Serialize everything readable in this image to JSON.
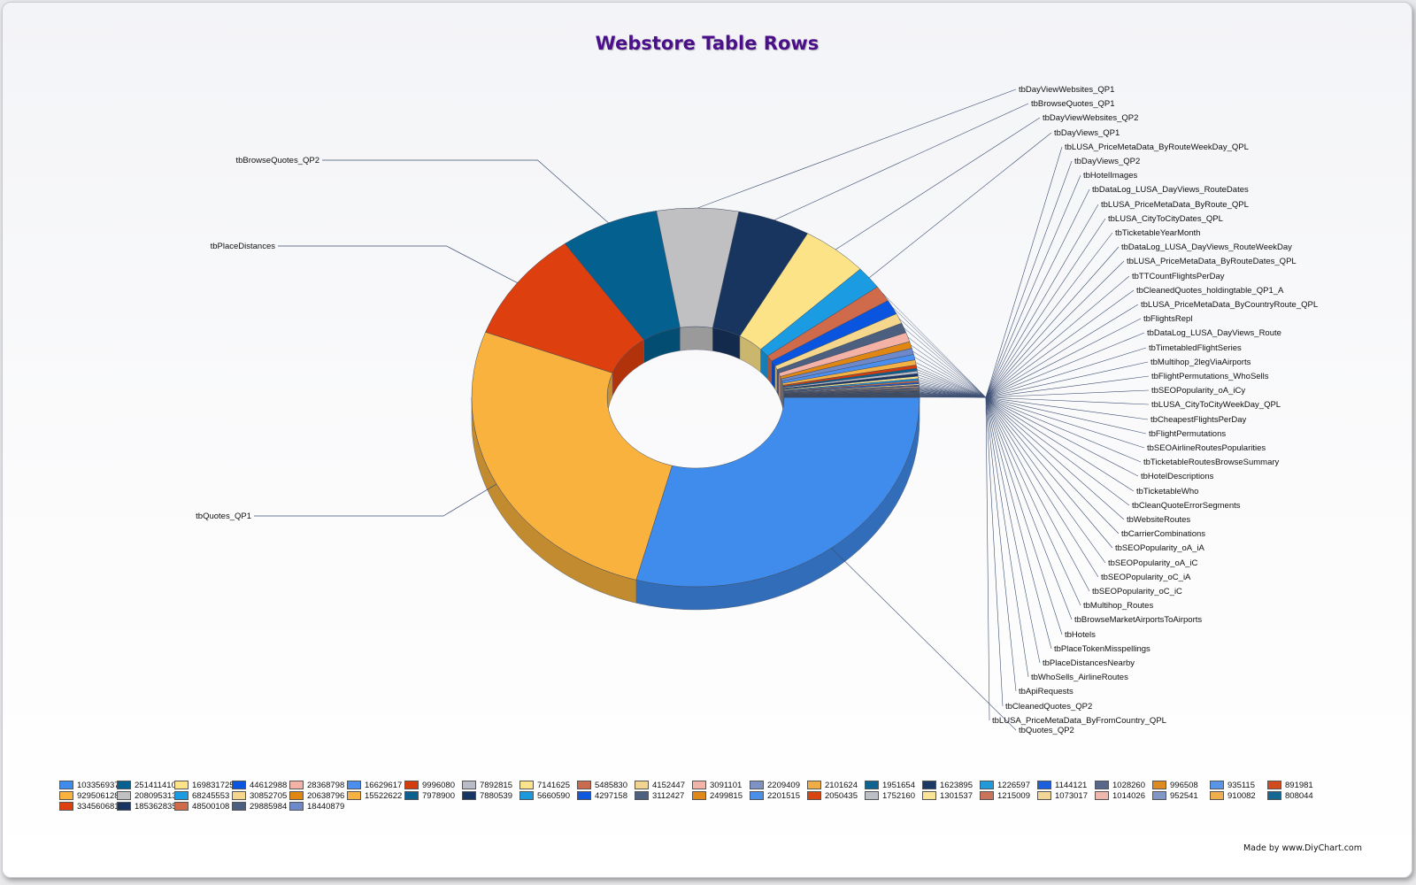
{
  "chart_data": {
    "type": "pie",
    "style": "3d-doughnut",
    "title": "Webstore Table Rows",
    "legend_position": "bottom",
    "slices": [
      {
        "label": "tbQuotes_QP2",
        "value": 1033569371,
        "color": "#3f8cec"
      },
      {
        "label": "tbQuotes_QP1",
        "value": 929506128,
        "color": "#f9b23d"
      },
      {
        "label": "tbPlaceDistances",
        "value": 334560681,
        "color": "#de3f0e"
      },
      {
        "label": "tbBrowseQuotes_QP2",
        "value": 251411410,
        "color": "#04608f"
      },
      {
        "label": "tbDayViewWebsites_QP1",
        "value": 208095313,
        "color": "#c0c0c2"
      },
      {
        "label": "tbBrowseQuotes_QP1",
        "value": 185362835,
        "color": "#18355f"
      },
      {
        "label": "tbDayViewWebsites_QP2",
        "value": 169831725,
        "color": "#fde388"
      },
      {
        "label": "tbDayViews_QP1",
        "value": 68245553,
        "color": "#1b9ce2"
      },
      {
        "label": "tbLUSA_PriceMetaData_ByRouteWeekDay_QPL",
        "value": 48500108,
        "color": "#cf6a4a"
      },
      {
        "label": "tbDayViews_QP2",
        "value": 44612988,
        "color": "#0a55df"
      },
      {
        "label": "tbHotelImages",
        "value": 30852705,
        "color": "#f4d68c"
      },
      {
        "label": "tbDataLog_LUSA_DayViews_RouteDates",
        "value": 29885984,
        "color": "#4d5f7f"
      },
      {
        "label": "tbLUSA_PriceMetaData_ByRoute_QPL",
        "value": 28368798,
        "color": "#f4b1a6"
      },
      {
        "label": "tbLUSA_CityToCityDates_QPL",
        "value": 20638796,
        "color": "#e08612"
      },
      {
        "label": "tbTicketableYearMonth",
        "value": 18440879,
        "color": "#6d89c9"
      },
      {
        "label": "tbDataLog_LUSA_DayViews_RouteWeekDay",
        "value": 16629617,
        "color": "#4b8fee"
      },
      {
        "label": "tbLUSA_PriceMetaData_ByRouteDates_QPL",
        "value": 15522622,
        "color": "#f5b142"
      },
      {
        "label": "tbTTCountFlightsPerDay",
        "value": 9996080,
        "color": "#d33d0d"
      },
      {
        "label": "tbCleanedQuotes_holdingtable_QP1_A",
        "value": 7978900,
        "color": "#0b608e"
      },
      {
        "label": "tbLUSA_PriceMetaData_ByCountryRoute_QPL",
        "value": 7892815,
        "color": "#b9bcc6"
      },
      {
        "label": "tbFlightsRepl",
        "value": 7880539,
        "color": "#173564"
      },
      {
        "label": "tbDataLog_LUSA_DayViews_Route",
        "value": 7141625,
        "color": "#fbe38c"
      },
      {
        "label": "tbTimetabledFlightSeries",
        "value": 5660590,
        "color": "#1c99dc"
      },
      {
        "label": "tbMultihop_2legViaAirports",
        "value": 5485830,
        "color": "#c96b4f"
      },
      {
        "label": "tbFlightPermutations_WhoSells",
        "value": 4297158,
        "color": "#0d58dc"
      },
      {
        "label": "tbSEOPopularity_oA_iCy",
        "value": 4152447,
        "color": "#f3d48f"
      },
      {
        "label": "tbLUSA_CityToCityWeekDay_QPL",
        "value": 3112427,
        "color": "#4f6181"
      },
      {
        "label": "tbCheapestFlightsPerDay",
        "value": 3091101,
        "color": "#f2b4a9"
      },
      {
        "label": "tbFlightPermutations",
        "value": 2499815,
        "color": "#e0871a"
      },
      {
        "label": "tbSEOAirlineRoutesPopularities",
        "value": 2209409,
        "color": "#7d93c6"
      },
      {
        "label": "tbTicketableRoutesBrowseSummary",
        "value": 2201515,
        "color": "#4c8fe8"
      },
      {
        "label": "tbHotelDescriptions",
        "value": 2101624,
        "color": "#f1ad45"
      },
      {
        "label": "tbTicketableWho",
        "value": 2050435,
        "color": "#d74512"
      },
      {
        "label": "tbCleanQuoteErrorSegments",
        "value": 1951654,
        "color": "#0f6391"
      },
      {
        "label": "tbWebsiteRoutes",
        "value": 1752160,
        "color": "#bdbfc6"
      },
      {
        "label": "tbCarrierCombinations",
        "value": 1623895,
        "color": "#1b3a66"
      },
      {
        "label": "tbSEOPopularity_oA_iA",
        "value": 1301537,
        "color": "#fae496"
      },
      {
        "label": "tbSEOPopularity_oA_iC",
        "value": 1226597,
        "color": "#229ad9"
      },
      {
        "label": "tbSEOPopularity_oC_iA",
        "value": 1215009,
        "color": "#c8735a"
      },
      {
        "label": "tbSEOPopularity_oC_iC",
        "value": 1144121,
        "color": "#1b5ede"
      },
      {
        "label": "tbMultihop_Routes",
        "value": 1073017,
        "color": "#f1d697"
      },
      {
        "label": "tbBrowseMarketAirportsToAirports",
        "value": 1028260,
        "color": "#56678a"
      },
      {
        "label": "tbHotels",
        "value": 1014026,
        "color": "#f0b7ae"
      },
      {
        "label": "tbPlaceTokenMisspellings",
        "value": 996508,
        "color": "#dc8a22"
      },
      {
        "label": "tbPlaceDistancesNearby",
        "value": 952541,
        "color": "#8196c4"
      },
      {
        "label": "tbWhoSells_AirlineRoutes",
        "value": 935115,
        "color": "#5a94e6"
      },
      {
        "label": "tbApiRequests",
        "value": 910082,
        "color": "#efae4d"
      },
      {
        "label": "tbCleanedQuotes_QP2",
        "value": 891981,
        "color": "#d24b1e"
      },
      {
        "label": "tbLUSA_PriceMetaData_ByFromCountry_QPL",
        "value": 808044,
        "color": "#146693"
      }
    ],
    "legend_values": [
      "1033569371",
      "251411410",
      "169831725",
      "44612988",
      "28368798",
      "16629617",
      "9996080",
      "7892815",
      "7141625",
      "5485830",
      "4152447",
      "3091101",
      "2209409",
      "2101624",
      "1951654",
      "1623895",
      "1226597",
      "1144121",
      "1028260",
      "996508",
      "935115",
      "891981",
      "929506128",
      "208095313",
      "68245553",
      "30852705",
      "20638796",
      "15522622",
      "7978900",
      "7880539",
      "5660590",
      "4297158",
      "3112427",
      "2499815",
      "2201515",
      "2050435",
      "1752160",
      "1301537",
      "1215009",
      "1073017",
      "1014026",
      "952541",
      "910082",
      "808044",
      "334560681",
      "185362835",
      "48500108",
      "29885984",
      "18440879"
    ],
    "legend_colors": [
      "#3f8cec",
      "#04608f",
      "#fde388",
      "#0a55df",
      "#f4b1a6",
      "#4b8fee",
      "#d33d0d",
      "#b9bcc6",
      "#fbe38c",
      "#c96b4f",
      "#f3d48f",
      "#f2b4a9",
      "#7d93c6",
      "#f1ad45",
      "#0f6391",
      "#1b3a66",
      "#229ad9",
      "#1b5ede",
      "#56678a",
      "#dc8a22",
      "#5a94e6",
      "#d24b1e",
      "#f9b23d",
      "#c0c0c2",
      "#1b9ce2",
      "#f4d68c",
      "#e08612",
      "#f5b142",
      "#0b608e",
      "#173564",
      "#1c99dc",
      "#0d58dc",
      "#4f6181",
      "#e0871a",
      "#4c8fe8",
      "#d74512",
      "#bdbfc6",
      "#fae496",
      "#c8735a",
      "#f1d697",
      "#f0b7ae",
      "#8196c4",
      "#efae4d",
      "#146693",
      "#de3f0e",
      "#18355f",
      "#cf6a4a",
      "#4d5f7f",
      "#6d89c9"
    ]
  },
  "credit": "Made by www.DiyChart.com"
}
